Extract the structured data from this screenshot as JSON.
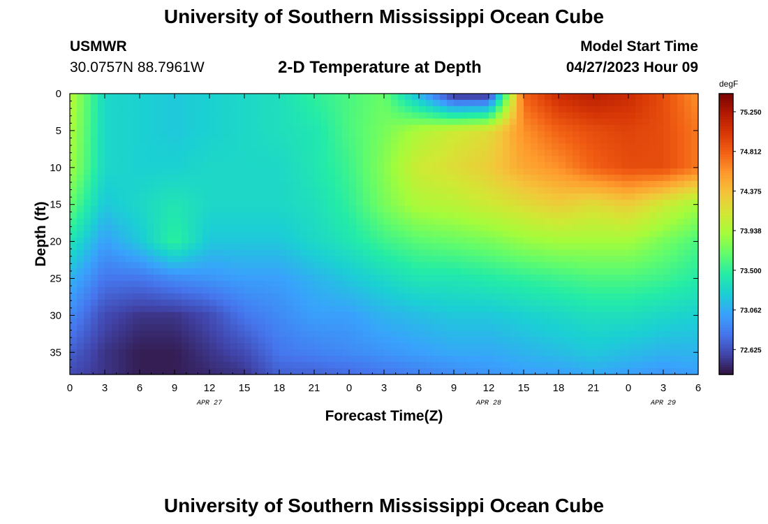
{
  "page": {
    "title": "University of Southern Mississippi Ocean Cube",
    "bottom_title": "University of Southern Mississippi Ocean Cube",
    "station": "USMWR",
    "coordinates": "30.0757N  88.7961W",
    "subtitle": "2-D Temperature at Depth",
    "model_start_label": "Model Start Time",
    "model_start_value": "04/27/2023 Hour 09"
  },
  "chart_data": {
    "type": "heatmap",
    "title": "2-D Temperature at Depth",
    "xlabel": "Forecast Time(Z)",
    "ylabel": "Depth (ft)",
    "units": "degF",
    "x_range_hours": [
      0,
      54
    ],
    "y_range_ft": [
      0,
      38
    ],
    "y_inverted": true,
    "x_ticks": [
      "0",
      "3",
      "6",
      "9",
      "12",
      "15",
      "18",
      "21",
      "0",
      "3",
      "6",
      "9",
      "12",
      "15",
      "18",
      "21",
      "0",
      "3",
      "6"
    ],
    "date_labels": [
      {
        "label": "APR 27",
        "hour": 12
      },
      {
        "label": "APR 28",
        "hour": 36
      },
      {
        "label": "APR 29",
        "hour": 51
      }
    ],
    "y_ticks": [
      0,
      5,
      10,
      15,
      20,
      25,
      30,
      35
    ],
    "colorbar": {
      "ticks": [
        "75.250",
        "74.812",
        "74.375",
        "73.938",
        "73.500",
        "73.062",
        "72.625"
      ],
      "range": [
        72.35,
        75.45
      ],
      "colors": [
        "#30123b",
        "#4145ab",
        "#4675ed",
        "#39a2fc",
        "#1bcfd4",
        "#24eca6",
        "#61fc6c",
        "#a4fc3b",
        "#d1e834",
        "#f3c63a",
        "#fe9b2d",
        "#f36315",
        "#d93806",
        "#b11901",
        "#7a0402"
      ]
    },
    "depth_profile": [
      {
        "hour": 0,
        "values": [
          74.0,
          73.95,
          73.9,
          73.7,
          73.4,
          73.1,
          72.9,
          72.7,
          72.6
        ]
      },
      {
        "hour": 3,
        "values": [
          73.3,
          73.3,
          73.3,
          73.2,
          73.0,
          72.8,
          72.6,
          72.5,
          72.5
        ]
      },
      {
        "hour": 6,
        "values": [
          73.25,
          73.25,
          73.25,
          73.3,
          73.2,
          72.8,
          72.5,
          72.4,
          72.4
        ]
      },
      {
        "hour": 9,
        "values": [
          73.2,
          73.2,
          73.25,
          73.4,
          73.5,
          72.9,
          72.5,
          72.4,
          72.4
        ]
      },
      {
        "hour": 12,
        "values": [
          73.25,
          73.25,
          73.3,
          73.3,
          73.2,
          72.95,
          72.6,
          72.5,
          72.45
        ]
      },
      {
        "hour": 15,
        "values": [
          73.3,
          73.3,
          73.3,
          73.3,
          73.2,
          73.0,
          72.8,
          72.6,
          72.5
        ]
      },
      {
        "hour": 18,
        "values": [
          73.35,
          73.35,
          73.3,
          73.3,
          73.2,
          73.0,
          72.9,
          72.8,
          72.7
        ]
      },
      {
        "hour": 21,
        "values": [
          73.5,
          73.4,
          73.4,
          73.35,
          73.3,
          73.1,
          73.0,
          72.85,
          72.7
        ]
      },
      {
        "hour": 24,
        "values": [
          73.6,
          73.6,
          73.55,
          73.5,
          73.4,
          73.2,
          73.0,
          72.9,
          72.75
        ]
      },
      {
        "hour": 27,
        "values": [
          73.7,
          73.75,
          73.8,
          73.75,
          73.55,
          73.3,
          73.1,
          72.95,
          72.8
        ]
      },
      {
        "hour": 30,
        "values": [
          73.1,
          73.95,
          74.1,
          73.95,
          73.65,
          73.4,
          73.15,
          73.0,
          72.85
        ]
      },
      {
        "hour": 33,
        "values": [
          72.45,
          74.1,
          74.2,
          74.0,
          73.7,
          73.4,
          73.2,
          73.05,
          72.9
        ]
      },
      {
        "hour": 36,
        "values": [
          72.45,
          74.2,
          74.3,
          74.1,
          73.75,
          73.45,
          73.2,
          73.05,
          72.95
        ]
      },
      {
        "hour": 39,
        "values": [
          74.8,
          74.6,
          74.5,
          74.2,
          73.85,
          73.5,
          73.25,
          73.1,
          73.0
        ]
      },
      {
        "hour": 42,
        "values": [
          75.1,
          74.8,
          74.6,
          74.3,
          73.9,
          73.55,
          73.3,
          73.15,
          73.0
        ]
      },
      {
        "hour": 45,
        "values": [
          75.2,
          74.9,
          74.8,
          74.2,
          73.9,
          73.6,
          73.35,
          73.2,
          73.05
        ]
      },
      {
        "hour": 48,
        "values": [
          75.1,
          74.95,
          74.9,
          74.3,
          73.9,
          73.6,
          73.35,
          73.15,
          73.0
        ]
      },
      {
        "hour": 51,
        "values": [
          74.9,
          74.9,
          74.9,
          74.1,
          73.75,
          73.55,
          73.3,
          73.1,
          72.95
        ]
      },
      {
        "hour": 54,
        "values": [
          74.6,
          74.7,
          74.7,
          73.9,
          73.6,
          73.45,
          73.25,
          73.1,
          73.0
        ]
      }
    ],
    "depth_profile_depths_ft": [
      0,
      5,
      10,
      15,
      20,
      25,
      30,
      35,
      38
    ],
    "grid": false
  }
}
